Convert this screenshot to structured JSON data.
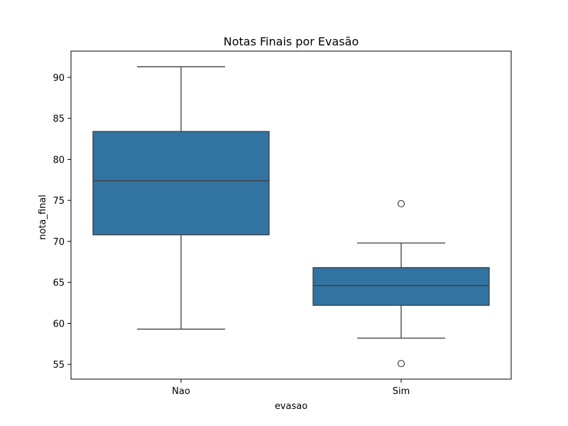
{
  "chart_data": {
    "type": "box",
    "title": "Notas Finais por Evasão",
    "xlabel": "evasao",
    "ylabel": "nota_final",
    "categories": [
      "Nao",
      "Sim"
    ],
    "ylim": [
      53.2,
      93.2
    ],
    "yticks": [
      55,
      60,
      65,
      70,
      75,
      80,
      85,
      90
    ],
    "grid": false,
    "boxes": [
      {
        "category": "Nao",
        "whisker_low": 59.3,
        "q1": 70.8,
        "median": 77.4,
        "q3": 83.4,
        "whisker_high": 91.3,
        "outliers": []
      },
      {
        "category": "Sim",
        "whisker_low": 58.2,
        "q1": 62.2,
        "median": 64.6,
        "q3": 66.8,
        "whisker_high": 69.8,
        "outliers": [
          74.6,
          55.1
        ]
      }
    ],
    "colors": {
      "box_fill": "#3274a1",
      "line": "#3d3d3d",
      "axes": "#000000"
    }
  }
}
